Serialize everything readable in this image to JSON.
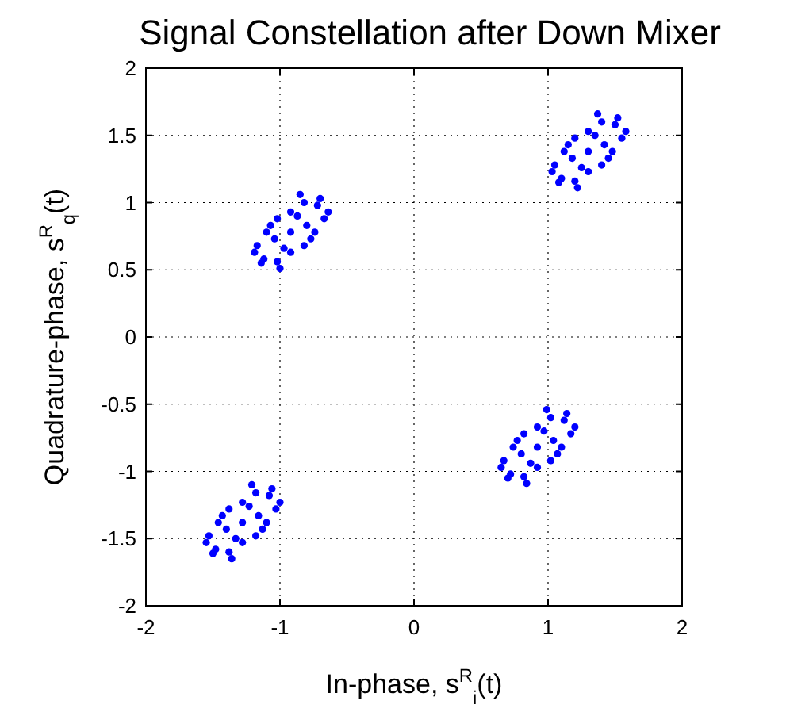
{
  "chart_data": {
    "type": "scatter",
    "title": "Signal Constellation after Down Mixer",
    "xlabel": "In-phase, s$^{R}$$_{i}$(t)",
    "ylabel": "Quadrature-phase, s$^{R}$$_{q}$(t)",
    "xlim": [
      -2,
      2
    ],
    "ylim": [
      -2,
      2
    ],
    "xticks": [
      -2,
      -1,
      0,
      1,
      2
    ],
    "yticks": [
      -2,
      -1.5,
      -1,
      -0.5,
      0,
      0.5,
      1,
      1.5,
      2
    ],
    "grid": true,
    "marker": "circle",
    "series": [
      {
        "color": "#0000ff",
        "x": [
          1.3,
          1.5,
          1.1,
          1.55,
          1.05,
          1.4,
          1.2,
          1.45,
          1.15,
          1.35,
          1.25,
          1.42,
          1.18,
          1.52,
          1.08,
          1.58,
          1.03,
          1.3,
          1.3,
          1.4,
          1.2,
          1.48,
          1.12,
          1.37,
          1.22,
          -0.92,
          -0.72,
          -1.12,
          -0.67,
          -1.17,
          -0.82,
          -1.02,
          -0.77,
          -1.07,
          -0.87,
          -0.97,
          -0.8,
          -1.04,
          -0.7,
          -1.14,
          -0.64,
          -1.19,
          -0.92,
          -0.92,
          -0.82,
          -1.02,
          -0.74,
          -1.1,
          -0.85,
          -1.0,
          0.92,
          1.12,
          0.72,
          1.17,
          0.67,
          1.02,
          0.82,
          1.07,
          0.77,
          0.97,
          0.87,
          1.04,
          0.8,
          1.14,
          0.7,
          1.2,
          0.65,
          0.92,
          0.92,
          1.02,
          0.82,
          1.1,
          0.74,
          0.99,
          0.84,
          -1.28,
          -1.08,
          -1.48,
          -1.03,
          -1.53,
          -1.18,
          -1.38,
          -1.13,
          -1.43,
          -1.23,
          -1.33,
          -1.16,
          -1.4,
          -1.06,
          -1.5,
          -1.0,
          -1.55,
          -1.28,
          -1.28,
          -1.18,
          -1.38,
          -1.1,
          -1.46,
          -1.21,
          -1.36
        ],
        "values": [
          1.38,
          1.58,
          1.18,
          1.48,
          1.28,
          1.6,
          1.16,
          1.33,
          1.43,
          1.5,
          1.26,
          1.43,
          1.33,
          1.63,
          1.15,
          1.53,
          1.23,
          1.53,
          1.23,
          1.28,
          1.48,
          1.38,
          1.38,
          1.66,
          1.11,
          0.78,
          0.98,
          0.58,
          0.88,
          0.68,
          1.0,
          0.56,
          0.73,
          0.83,
          0.9,
          0.66,
          0.83,
          0.73,
          1.03,
          0.55,
          0.93,
          0.63,
          0.93,
          0.63,
          0.68,
          0.88,
          0.78,
          0.78,
          1.06,
          0.51,
          -0.82,
          -0.62,
          -1.02,
          -0.72,
          -0.92,
          -0.6,
          -1.04,
          -0.87,
          -0.77,
          -0.7,
          -0.94,
          -0.77,
          -0.87,
          -0.57,
          -1.05,
          -0.67,
          -0.97,
          -0.67,
          -0.97,
          -0.92,
          -0.72,
          -0.82,
          -0.82,
          -0.54,
          -1.09,
          -1.38,
          -1.18,
          -1.58,
          -1.28,
          -1.48,
          -1.16,
          -1.6,
          -1.43,
          -1.33,
          -1.26,
          -1.5,
          -1.33,
          -1.43,
          -1.13,
          -1.61,
          -1.23,
          -1.53,
          -1.23,
          -1.53,
          -1.48,
          -1.28,
          -1.38,
          -1.38,
          -1.1,
          -1.65
        ]
      }
    ]
  }
}
